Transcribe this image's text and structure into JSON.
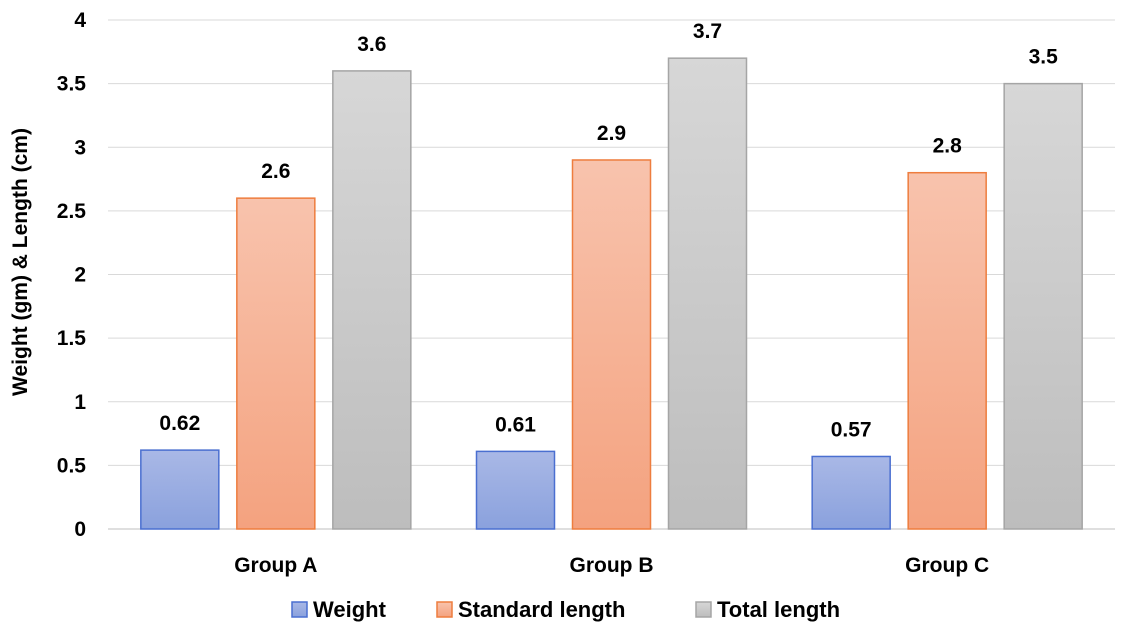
{
  "chart_data": {
    "type": "bar",
    "title": "",
    "xlabel": "",
    "ylabel": "Weight (gm) & Length (cm)",
    "categories": [
      "Group A",
      "Group B",
      "Group C"
    ],
    "series": [
      {
        "name": "Weight",
        "values": [
          0.62,
          0.61,
          0.57
        ],
        "labels": [
          "0.62",
          "0.61",
          "0.57"
        ],
        "color_top": "#a9b8e6",
        "color_bottom": "#8aa1dd",
        "border": "#4a6fd0"
      },
      {
        "name": "Standard length",
        "values": [
          2.6,
          2.9,
          2.8
        ],
        "labels": [
          "2.6",
          "2.9",
          "2.8"
        ],
        "color_top": "#f8c3ad",
        "color_bottom": "#f4a27f",
        "border": "#ee7d3e"
      },
      {
        "name": "Total length",
        "values": [
          3.6,
          3.7,
          3.5
        ],
        "labels": [
          "3.6",
          "3.7",
          "3.5"
        ],
        "color_top": "#d7d7d7",
        "color_bottom": "#bdbdbd",
        "border": "#a5a5a5"
      }
    ],
    "ylim": [
      0,
      4
    ],
    "yticks": [
      "0",
      "0.5",
      "1",
      "1.5",
      "2",
      "2.5",
      "3",
      "3.5",
      "4"
    ],
    "ytick_values": [
      0,
      0.5,
      1,
      1.5,
      2,
      2.5,
      3,
      3.5,
      4
    ],
    "grid": true,
    "legend_position": "bottom"
  }
}
